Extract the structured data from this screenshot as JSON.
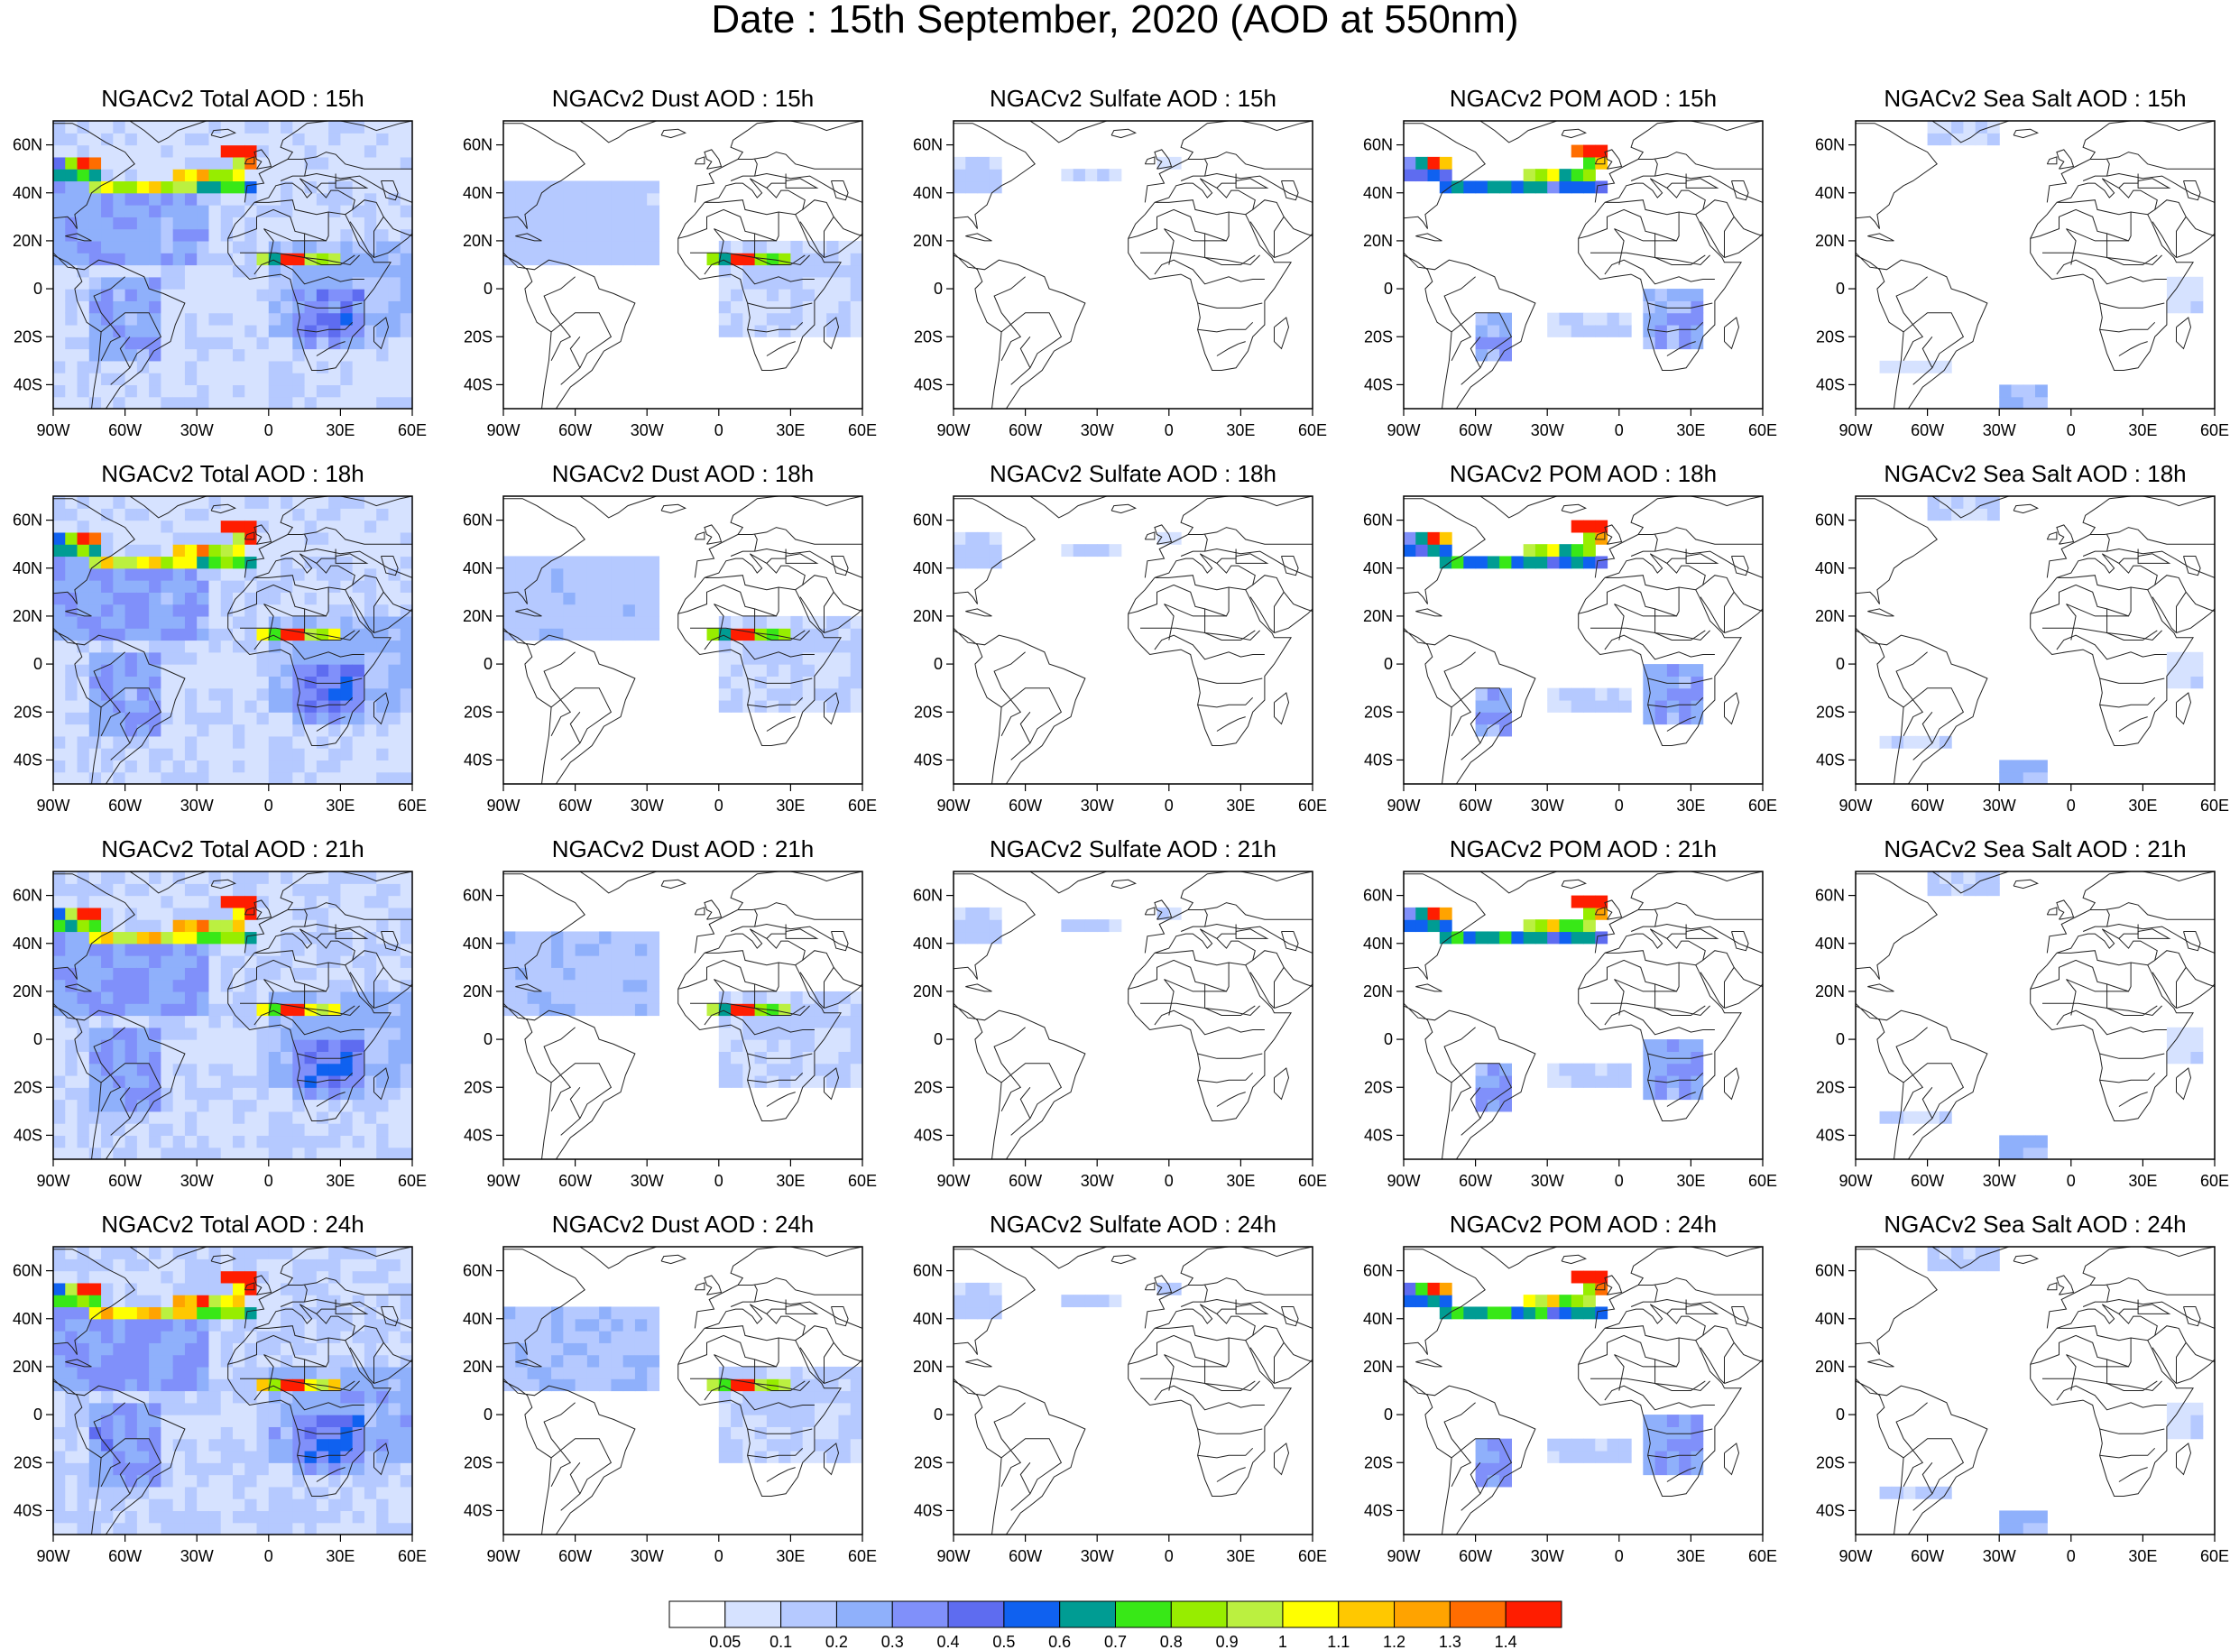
{
  "title": "Date : 15th September, 2020 (AOD at 550nm)",
  "panels": [
    [
      "NGACv2 Total AOD : 15h",
      "NGACv2 Dust AOD : 15h",
      "NGACv2 Sulfate AOD : 15h",
      "NGACv2 POM AOD : 15h",
      "NGACv2 Sea Salt AOD : 15h"
    ],
    [
      "NGACv2 Total AOD : 18h",
      "NGACv2 Dust AOD : 18h",
      "NGACv2 Sulfate AOD : 18h",
      "NGACv2 POM AOD : 18h",
      "NGACv2 Sea Salt AOD : 18h"
    ],
    [
      "NGACv2 Total AOD : 21h",
      "NGACv2 Dust AOD : 21h",
      "NGACv2 Sulfate AOD : 21h",
      "NGACv2 POM AOD : 21h",
      "NGACv2 Sea Salt AOD : 21h"
    ],
    [
      "NGACv2 Total AOD : 24h",
      "NGACv2 Dust AOD : 24h",
      "NGACv2 Sulfate AOD : 24h",
      "NGACv2 POM AOD : 24h",
      "NGACv2 Sea Salt  AOD : 24h"
    ]
  ],
  "lon_ticks": [
    "90W",
    "60W",
    "30W",
    "0",
    "30E",
    "60E"
  ],
  "lat_ticks": [
    "60N",
    "40N",
    "20N",
    "0",
    "20S",
    "40S"
  ],
  "lon_range": [
    -90,
    60
  ],
  "lat_range": [
    -50,
    70
  ],
  "colorbar": {
    "colors": [
      "#ffffff",
      "#d6e2ff",
      "#b5c9ff",
      "#8fb0fb",
      "#8090fa",
      "#5e6cf0",
      "#0f61f0",
      "#009c93",
      "#38e817",
      "#97ed00",
      "#bbf040",
      "#ffff00",
      "#ffc800",
      "#ffa300",
      "#ff6d00",
      "#ff1d00"
    ],
    "labels": [
      "0.05",
      "0.1",
      "0.2",
      "0.3",
      "0.4",
      "0.5",
      "0.6",
      "0.7",
      "0.8",
      "0.9",
      "1",
      "1.1",
      "1.2",
      "1.3",
      "1.4"
    ]
  }
}
